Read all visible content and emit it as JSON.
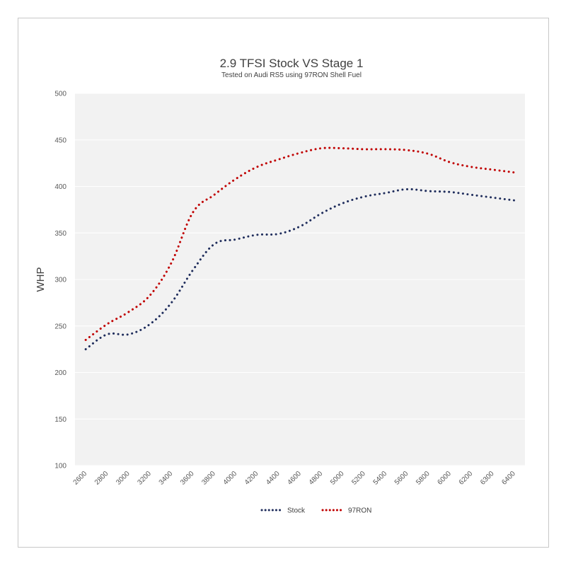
{
  "chart_data": {
    "type": "line",
    "title": "2.9 TFSI Stock VS Stage 1",
    "subtitle": "Tested on Audi RS5 using 97RON Shell Fuel",
    "xlabel": "",
    "ylabel": "WHP",
    "ylim": [
      100,
      500
    ],
    "ytick_step": 50,
    "grid": true,
    "legend_position": "bottom",
    "categories": [
      "2600",
      "2800",
      "3000",
      "3200",
      "3400",
      "3600",
      "3800",
      "4000",
      "4200",
      "4400",
      "4600",
      "4800",
      "5000",
      "5200",
      "5400",
      "5600",
      "5800",
      "6000",
      "6200",
      "6300",
      "6400"
    ],
    "series": [
      {
        "name": "Stock",
        "color": "#1f2d5c",
        "values": [
          225,
          241,
          241,
          252,
          275,
          310,
          338,
          343,
          348,
          349,
          357,
          371,
          382,
          389,
          393,
          397,
          395,
          394,
          391,
          388,
          385
        ]
      },
      {
        "name": "97RON",
        "color": "#c00000",
        "values": [
          235,
          252,
          265,
          283,
          318,
          372,
          391,
          408,
          421,
          429,
          436,
          441,
          441,
          440,
          440,
          439,
          435,
          426,
          421,
          418,
          415
        ]
      }
    ]
  }
}
